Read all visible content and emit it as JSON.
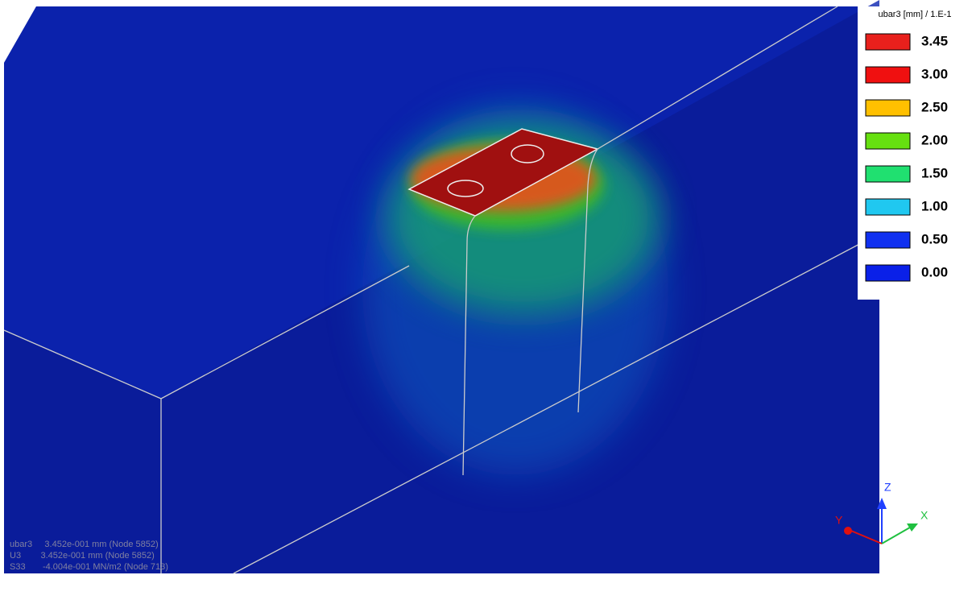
{
  "legend": {
    "title": "ubar3 [mm] / 1.E-1",
    "items": [
      {
        "label": "3.45",
        "color": "#e8201c"
      },
      {
        "label": "3.00",
        "color": "#f01010"
      },
      {
        "label": "2.50",
        "color": "#ffc000"
      },
      {
        "label": "2.00",
        "color": "#66e010"
      },
      {
        "label": "1.50",
        "color": "#20e070"
      },
      {
        "label": "1.00",
        "color": "#20c8f0"
      },
      {
        "label": "0.50",
        "color": "#1030f0"
      },
      {
        "label": "0.00",
        "color": "#0a20e8"
      }
    ]
  },
  "info": [
    "ubar3     3.452e-001 mm (Node 5852)",
    "U3        3.452e-001 mm (Node 5852)",
    "S33       -4.004e-001 MN/m2 (Node 713)"
  ],
  "triad": {
    "z": "Z",
    "y": "Y",
    "x": "X"
  }
}
